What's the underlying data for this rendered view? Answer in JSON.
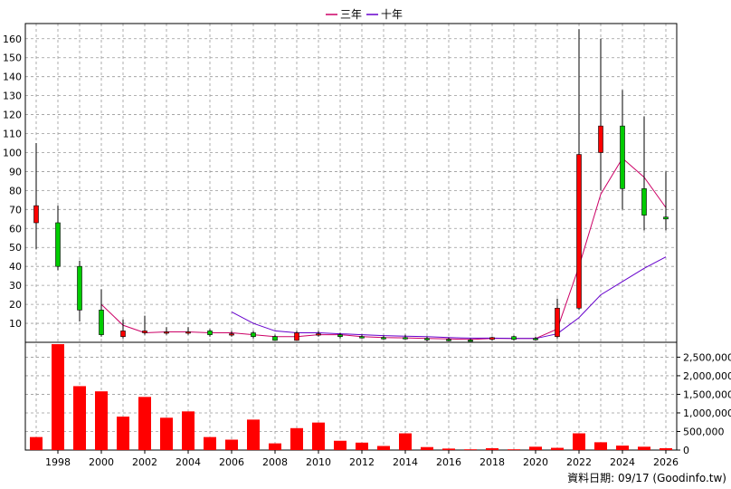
{
  "chart_data": {
    "type": "candlestick",
    "legend": [
      {
        "name": "三年",
        "color": "#cc0066"
      },
      {
        "name": "十年",
        "color": "#6600cc"
      }
    ],
    "legend_position": "top-center",
    "grid": true,
    "price_axis": {
      "ylim": [
        0,
        168
      ],
      "ticks": [
        10,
        20,
        30,
        40,
        50,
        60,
        70,
        80,
        90,
        100,
        110,
        120,
        130,
        140,
        150,
        160
      ]
    },
    "volume_axis": {
      "ylim": [
        0,
        2900000
      ],
      "ticks": [
        0,
        500000,
        1000000,
        1500000,
        2000000,
        2500000
      ],
      "tick_labels": [
        "0",
        "500,000",
        "1,000,000",
        "1,500,000",
        "2,000,000",
        "2,500,000"
      ]
    },
    "x_axis": {
      "xlim": [
        1996.5,
        2026.5
      ],
      "ticks": [
        1998,
        2000,
        2002,
        2004,
        2006,
        2008,
        2010,
        2012,
        2014,
        2016,
        2018,
        2020,
        2022,
        2024,
        2026
      ],
      "tick_labels": [
        "1998",
        "2000",
        "2002",
        "2004",
        "2006",
        "2008",
        "2010",
        "2012",
        "2014",
        "2016",
        "2018",
        "2020",
        "2022",
        "2024",
        "2026"
      ]
    },
    "candles": [
      {
        "x": 1997,
        "o": 63,
        "c": 72,
        "h": 105,
        "l": 49
      },
      {
        "x": 1998,
        "o": 63,
        "c": 40,
        "h": 72,
        "l": 38
      },
      {
        "x": 1999,
        "o": 40,
        "c": 17,
        "h": 43,
        "l": 11
      },
      {
        "x": 2000,
        "o": 17,
        "c": 4,
        "h": 28,
        "l": 3
      },
      {
        "x": 2001,
        "o": 3,
        "c": 6,
        "h": 12,
        "l": 2
      },
      {
        "x": 2002,
        "o": 5,
        "c": 6,
        "h": 14,
        "l": 4
      },
      {
        "x": 2003,
        "o": 5,
        "c": 5.5,
        "h": 8,
        "l": 4
      },
      {
        "x": 2004,
        "o": 5,
        "c": 5.5,
        "h": 8,
        "l": 4
      },
      {
        "x": 2005,
        "o": 6,
        "c": 4,
        "h": 7,
        "l": 3
      },
      {
        "x": 2006,
        "o": 4,
        "c": 4.5,
        "h": 6,
        "l": 3
      },
      {
        "x": 2007,
        "o": 5,
        "c": 3,
        "h": 6,
        "l": 2
      },
      {
        "x": 2008,
        "o": 3,
        "c": 1,
        "h": 4,
        "l": 1
      },
      {
        "x": 2009,
        "o": 1,
        "c": 5,
        "h": 6,
        "l": 1
      },
      {
        "x": 2010,
        "o": 4,
        "c": 4.5,
        "h": 6,
        "l": 3
      },
      {
        "x": 2011,
        "o": 4,
        "c": 3,
        "h": 5,
        "l": 2
      },
      {
        "x": 2012,
        "o": 3,
        "c": 2.5,
        "h": 4,
        "l": 2
      },
      {
        "x": 2013,
        "o": 2.5,
        "c": 2.2,
        "h": 3.5,
        "l": 1.5
      },
      {
        "x": 2014,
        "o": 2.5,
        "c": 2,
        "h": 4,
        "l": 1.5
      },
      {
        "x": 2015,
        "o": 2,
        "c": 1.5,
        "h": 3,
        "l": 0.5
      },
      {
        "x": 2016,
        "o": 1.5,
        "c": 1.2,
        "h": 2.5,
        "l": 0.5
      },
      {
        "x": 2017,
        "o": 1.2,
        "c": 1,
        "h": 2,
        "l": 0.5
      },
      {
        "x": 2018,
        "o": 1.5,
        "c": 2.5,
        "h": 3,
        "l": 1
      },
      {
        "x": 2019,
        "o": 3,
        "c": 1.5,
        "h": 3.5,
        "l": 1
      },
      {
        "x": 2020,
        "o": 2,
        "c": 1.5,
        "h": 3,
        "l": 1
      },
      {
        "x": 2021,
        "o": 3,
        "c": 18,
        "h": 23,
        "l": 2
      },
      {
        "x": 2022,
        "o": 18,
        "c": 99,
        "h": 165,
        "l": 17
      },
      {
        "x": 2023,
        "o": 100,
        "c": 114,
        "h": 160,
        "l": 80
      },
      {
        "x": 2024,
        "o": 114,
        "c": 81,
        "h": 133,
        "l": 70
      },
      {
        "x": 2025,
        "o": 81,
        "c": 67,
        "h": 119,
        "l": 59
      },
      {
        "x": 2026,
        "o": 66,
        "c": 65,
        "h": 90,
        "l": 59
      }
    ],
    "series": [
      {
        "name": "三年",
        "color": "#cc0066",
        "x": [
          2000,
          2001,
          2002,
          2003,
          2004,
          2005,
          2006,
          2007,
          2008,
          2009,
          2010,
          2011,
          2012,
          2013,
          2014,
          2015,
          2016,
          2017,
          2018,
          2019,
          2020,
          2021,
          2022,
          2023,
          2024,
          2025,
          2026
        ],
        "y": [
          20,
          9,
          5,
          5.5,
          5.5,
          5,
          5,
          4,
          3,
          3,
          4,
          4,
          3,
          2.5,
          2.3,
          2,
          1.8,
          1.5,
          2,
          2,
          2,
          7,
          40,
          78,
          97,
          87,
          71
        ]
      },
      {
        "name": "十年",
        "color": "#6600cc",
        "x": [
          2006,
          2007,
          2008,
          2009,
          2010,
          2011,
          2012,
          2013,
          2014,
          2015,
          2016,
          2017,
          2018,
          2019,
          2020,
          2021,
          2022,
          2023,
          2024,
          2025,
          2026
        ],
        "y": [
          16,
          10,
          6,
          5,
          5,
          4.5,
          4,
          3.5,
          3.2,
          3,
          2.5,
          2.2,
          2.2,
          2,
          2,
          4.5,
          13,
          25,
          32,
          39,
          45
        ]
      }
    ],
    "volume": {
      "x": [
        1997,
        1998,
        1999,
        2000,
        2001,
        2002,
        2003,
        2004,
        2005,
        2006,
        2007,
        2008,
        2009,
        2010,
        2011,
        2012,
        2013,
        2014,
        2015,
        2016,
        2017,
        2018,
        2019,
        2020,
        2021,
        2022,
        2023,
        2024,
        2025,
        2026
      ],
      "values": [
        350000,
        2850000,
        1720000,
        1580000,
        900000,
        1430000,
        870000,
        1040000,
        350000,
        280000,
        820000,
        180000,
        590000,
        740000,
        250000,
        200000,
        110000,
        450000,
        80000,
        40000,
        20000,
        50000,
        20000,
        90000,
        60000,
        450000,
        210000,
        120000,
        90000,
        50000
      ],
      "color": "#ff0000"
    }
  },
  "footer": {
    "source_label": "資料日期: 09/17  (Goodinfo.tw)"
  }
}
